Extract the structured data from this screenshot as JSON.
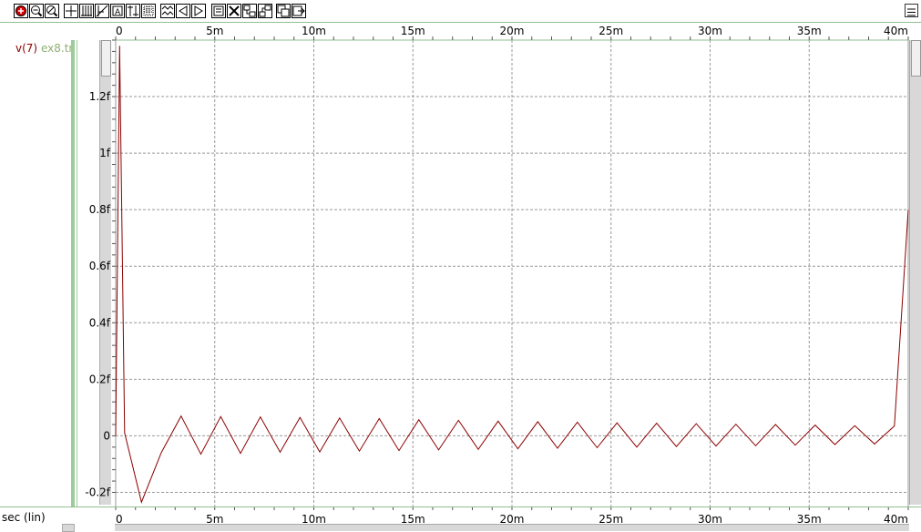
{
  "toolbar": {
    "groups": [
      {
        "name": "zoom",
        "icons": [
          "zoom-in-icon",
          "zoom-out-icon",
          "zoom-fit-icon"
        ]
      },
      {
        "name": "cursor",
        "icons": [
          "x-cursor-icon",
          "grid-icon",
          "slope-icon",
          "label-icon",
          "y-cursor-icon",
          "density-icon"
        ]
      },
      {
        "name": "navigate",
        "icons": [
          "waveform-icon",
          "pan-left-icon",
          "pan-right-icon"
        ]
      },
      {
        "name": "panel",
        "icons": [
          "panel-icon",
          "delete-icon",
          "stack-icon",
          "overlay-icon"
        ]
      },
      {
        "name": "export",
        "icons": [
          "copy-icon",
          "export-icon"
        ]
      }
    ]
  },
  "legend": {
    "signal": "v(7)",
    "file": "ex8.tr"
  },
  "x_unit_label": "sec (lin)",
  "colors": {
    "trace": "#8b0000",
    "grid": "#999999",
    "separator": "#8fbf8f",
    "legend_file": "#8faf6f"
  },
  "chart_data": {
    "type": "line",
    "xlim": [
      0,
      40
    ],
    "ylim": [
      -0.25,
      1.4
    ],
    "x_ticks": [
      0,
      5,
      10,
      15,
      20,
      25,
      30,
      35,
      40
    ],
    "x_tick_labels": [
      "0",
      "5m",
      "10m",
      "15m",
      "20m",
      "25m",
      "30m",
      "35m",
      "40m"
    ],
    "y_ticks": [
      -0.2,
      0,
      0.2,
      0.4,
      0.6,
      0.8,
      1.0,
      1.2
    ],
    "y_tick_labels": [
      "-0.2f",
      "0",
      "0.2f",
      "0.4f",
      "0.6f",
      "0.8f",
      "1f",
      "1.2f"
    ],
    "grid": true,
    "series": [
      {
        "color": "#8b0000",
        "x": [
          0,
          0.2,
          0.45,
          1.3,
          2.3,
          3.3,
          4.3,
          5.3,
          6.3,
          7.3,
          8.3,
          9.3,
          10.3,
          11.3,
          12.3,
          13.3,
          14.3,
          15.3,
          16.3,
          17.3,
          18.3,
          19.3,
          20.3,
          21.3,
          22.3,
          23.3,
          24.3,
          25.3,
          26.3,
          27.3,
          28.3,
          29.3,
          30.3,
          31.3,
          32.3,
          33.3,
          34.3,
          35.3,
          36.3,
          37.3,
          38.3,
          39.3,
          40
        ],
        "y": [
          0,
          1.38,
          0.01,
          -0.235,
          -0.06,
          0.07,
          -0.065,
          0.068,
          -0.062,
          0.067,
          -0.058,
          0.065,
          -0.057,
          0.063,
          -0.054,
          0.061,
          -0.052,
          0.057,
          -0.05,
          0.055,
          -0.048,
          0.052,
          -0.046,
          0.05,
          -0.044,
          0.048,
          -0.042,
          0.046,
          -0.04,
          0.045,
          -0.038,
          0.043,
          -0.036,
          0.041,
          -0.035,
          0.04,
          -0.033,
          0.038,
          -0.031,
          0.036,
          -0.029,
          0.035,
          0.8
        ]
      }
    ]
  }
}
